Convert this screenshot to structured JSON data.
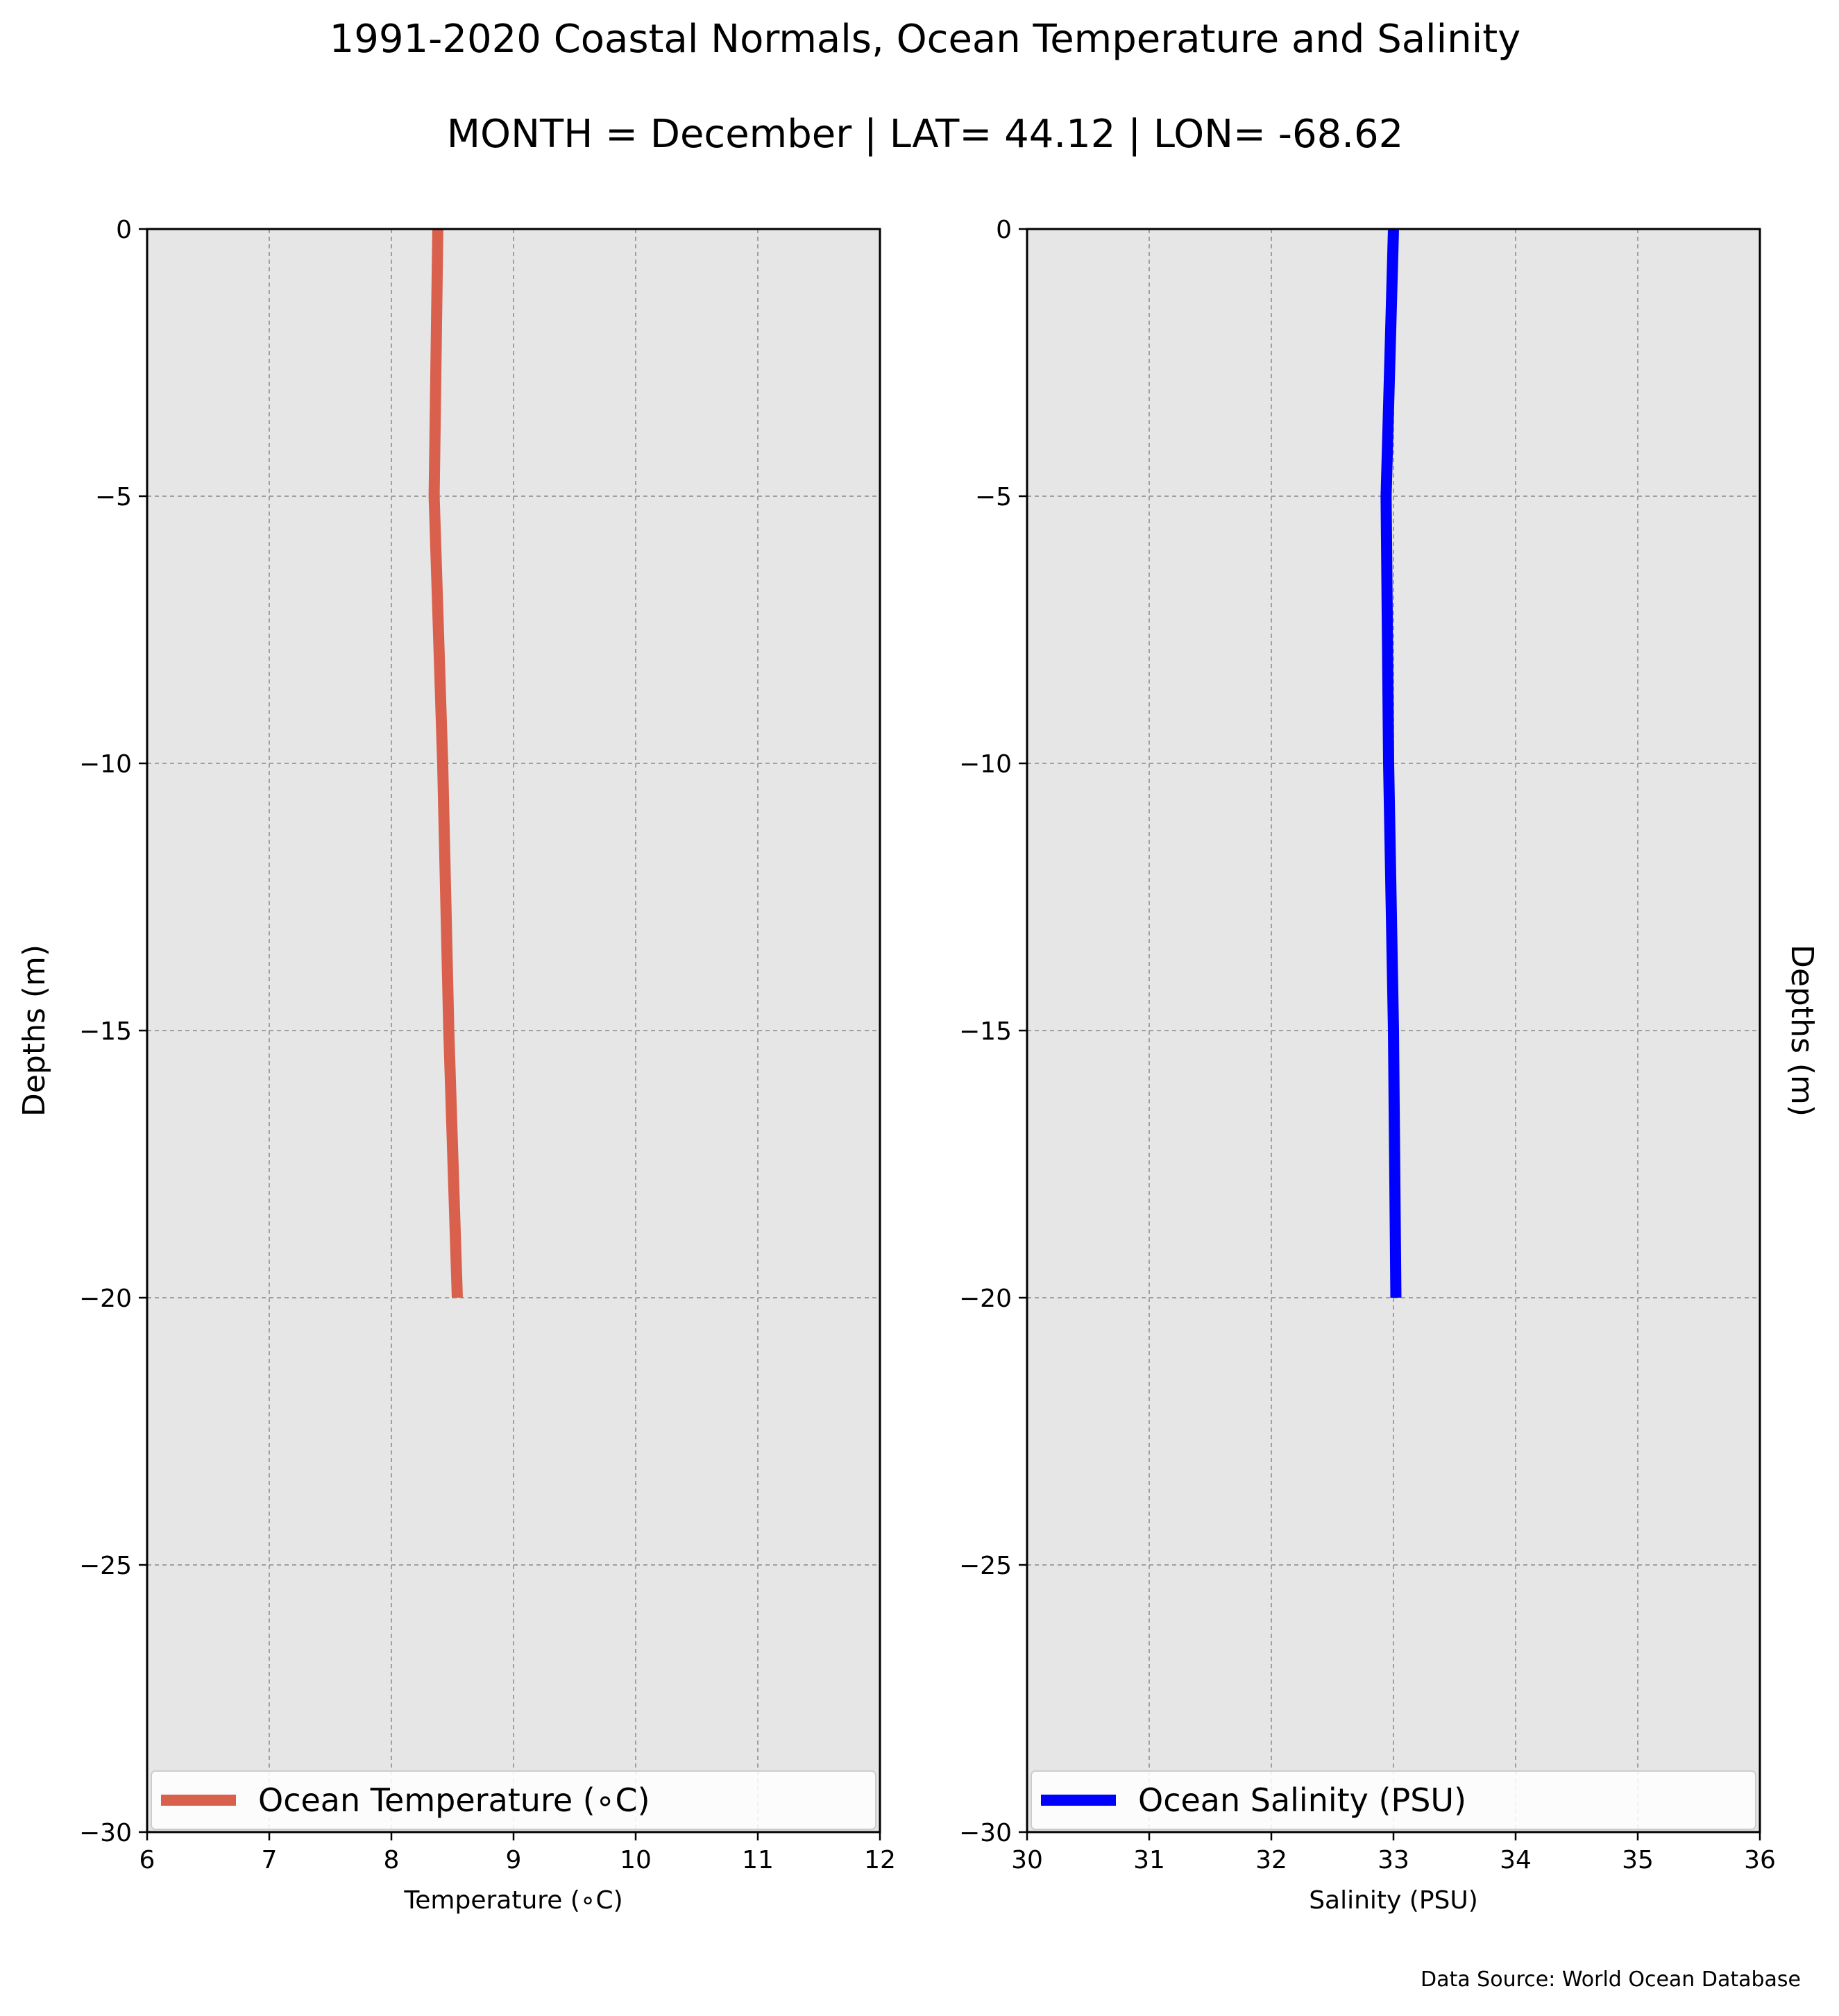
{
  "figure": {
    "title_line1": "1991-2020 Coastal Normals, Ocean Temperature and Salinity",
    "title_line2": "MONTH = December | LAT= 44.12 | LON= -68.62",
    "source_note": "Data Source: World Ocean Database",
    "background_color": "#ffffff",
    "axes_facecolor": "#e6e6e6"
  },
  "chart_data": [
    {
      "type": "line",
      "orientation": "vertical-profile",
      "xlabel": "Temperature ($^\\circ$C)",
      "xlabel_display": "Temperature (∘C)",
      "ylabel": "Depths (m)",
      "ylabel_side": "left",
      "xlim": [
        6,
        12
      ],
      "ylim": [
        -30,
        0
      ],
      "xticks": [
        6,
        7,
        8,
        9,
        10,
        11,
        12
      ],
      "yticks": [
        0,
        -5,
        -10,
        -15,
        -20,
        -25,
        -30
      ],
      "ytick_labels": [
        "0",
        "−5",
        "−10",
        "−15",
        "−20",
        "−25",
        "−30"
      ],
      "grid": true,
      "legend_placement": "lower center",
      "series": [
        {
          "name": "Ocean Temperature (∘C)",
          "color": "#d9604c",
          "x": [
            8.38,
            8.35,
            8.42,
            8.47,
            8.54
          ],
          "y": [
            0,
            -5,
            -10,
            -15,
            -20
          ]
        }
      ]
    },
    {
      "type": "line",
      "orientation": "vertical-profile",
      "xlabel": "Salinity (PSU)",
      "ylabel": "Depths (m)",
      "ylabel_side": "right",
      "xlim": [
        30,
        36
      ],
      "ylim": [
        -30,
        0
      ],
      "xticks": [
        30,
        31,
        32,
        33,
        34,
        35,
        36
      ],
      "yticks": [
        0,
        -5,
        -10,
        -15,
        -20,
        -25,
        -30
      ],
      "ytick_labels": [
        "0",
        "−5",
        "−10",
        "−15",
        "−20",
        "−25",
        "−30"
      ],
      "grid": true,
      "legend_placement": "lower center",
      "series": [
        {
          "name": "Ocean Salinity (PSU)",
          "color": "#0000ff",
          "x": [
            33.0,
            32.94,
            32.96,
            33.0,
            33.02
          ],
          "y": [
            0,
            -5,
            -10,
            -15,
            -20
          ]
        }
      ]
    }
  ]
}
